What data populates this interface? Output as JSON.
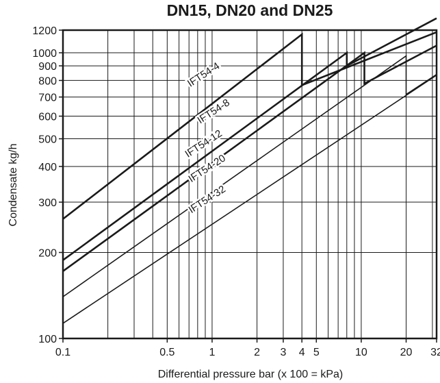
{
  "chart_data": {
    "type": "line",
    "title": "DN15, DN20 and DN25",
    "xlabel": "Differential pressure bar (x 100 = kPa)",
    "ylabel": "Condensate kg/h",
    "x_scale": "log",
    "y_scale": "log",
    "xlim": [
      0.1,
      32
    ],
    "ylim": [
      100,
      1200
    ],
    "x_ticks": [
      0.1,
      0.5,
      1,
      2,
      3,
      4,
      5,
      10,
      20,
      32
    ],
    "x_tick_labels": [
      "0.1",
      "0.5",
      "1",
      "2",
      "3",
      "4",
      "5",
      "10",
      "20",
      "32"
    ],
    "y_ticks": [
      100,
      200,
      300,
      400,
      500,
      600,
      700,
      800,
      900,
      1000,
      1200
    ],
    "y_tick_labels": [
      "100",
      "200",
      "300",
      "400",
      "500",
      "600",
      "700",
      "800",
      "900",
      "1000",
      "1200"
    ],
    "x_gridlines": [
      0.2,
      0.3,
      0.4,
      0.5,
      0.6,
      0.7,
      0.8,
      0.9,
      1,
      2,
      3,
      4,
      5,
      6,
      7,
      8,
      9,
      10,
      20,
      30
    ],
    "y_gridlines": [
      200,
      300,
      400,
      500,
      600,
      700,
      800,
      900,
      1000
    ],
    "grid": true,
    "series": [
      {
        "name": "IFT54-4",
        "bold": true,
        "points": [
          [
            0.1,
            262
          ],
          [
            4,
            1160
          ],
          [
            4,
            770
          ],
          [
            32,
            1180
          ]
        ]
      },
      {
        "name": "IFT54-8",
        "bold": true,
        "points": [
          [
            0.1,
            188
          ],
          [
            8,
            1000
          ],
          [
            8,
            900
          ],
          [
            32,
            1320
          ]
        ]
      },
      {
        "name": "IFT54-12",
        "bold": true,
        "points": [
          [
            0.1,
            172
          ],
          [
            10.5,
            1000
          ],
          [
            10.5,
            780
          ],
          [
            32,
            1060
          ]
        ]
      },
      {
        "name": "IFT54-20",
        "bold": false,
        "points": [
          [
            0.1,
            140
          ],
          [
            20,
            975
          ],
          [
            20,
            715
          ],
          [
            32,
            840
          ]
        ]
      },
      {
        "name": "IFT54-32",
        "bold": false,
        "points": [
          [
            0.1,
            113
          ],
          [
            32,
            835
          ]
        ]
      }
    ],
    "annotations": [
      {
        "text": "IFT54-4",
        "x": 0.9,
        "y": 820
      },
      {
        "text": "IFT54-8",
        "x": 1.05,
        "y": 610
      },
      {
        "text": "IFT54-12",
        "x": 0.9,
        "y": 470
      },
      {
        "text": "IFT54-20",
        "x": 0.95,
        "y": 385
      },
      {
        "text": "IFT54-32",
        "x": 0.95,
        "y": 300
      }
    ]
  }
}
